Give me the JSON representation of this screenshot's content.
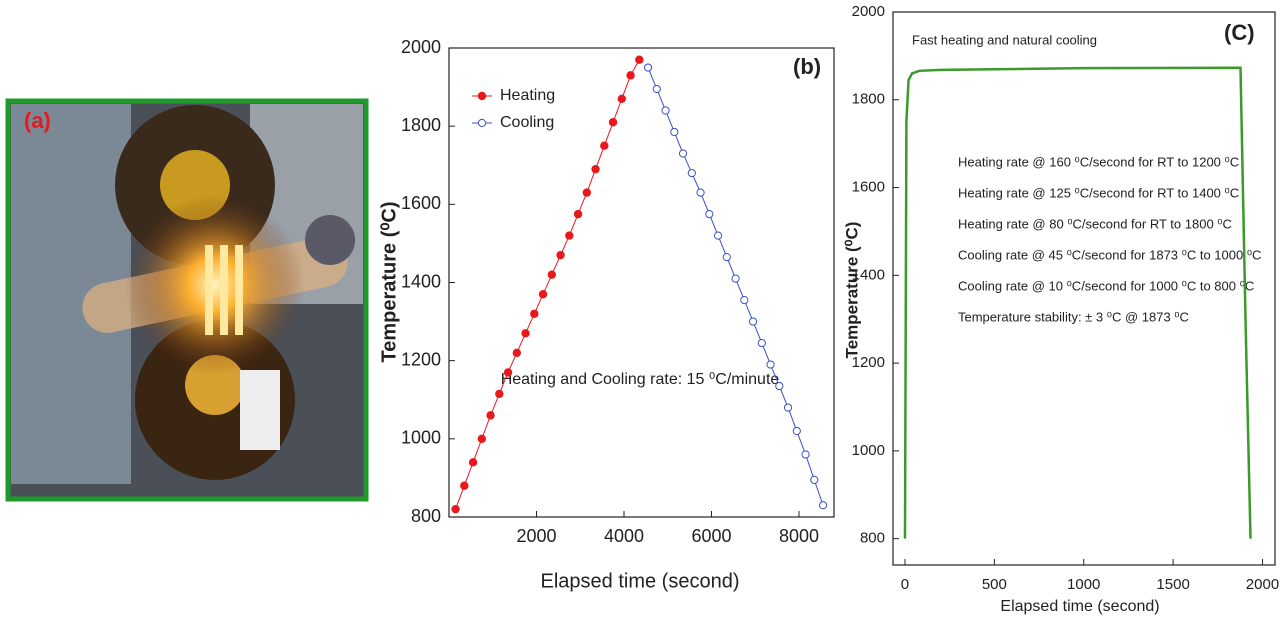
{
  "photo": {
    "label": "(a)"
  },
  "chart_data": [
    {
      "type": "line",
      "panel_label": "(b)",
      "x_label": "Elapsed time (second)",
      "y_label": "Temperature (⁰C)",
      "annotation": "Heating and Cooling rate: 15 ⁰C/minute",
      "xlim": [
        0,
        8800
      ],
      "xticks": [
        2000,
        4000,
        6000,
        8000
      ],
      "ylim": [
        800,
        2000
      ],
      "yticks": [
        800,
        1000,
        1200,
        1400,
        1600,
        1800,
        2000
      ],
      "grid": false,
      "legend": "upper left",
      "series": [
        {
          "name": "Heating",
          "color": "#e8191c",
          "marker": "filled",
          "x": [
            150,
            350,
            550,
            750,
            950,
            1150,
            1350,
            1550,
            1750,
            1950,
            2150,
            2350,
            2550,
            2750,
            2950,
            3150,
            3350,
            3550,
            3750,
            3950,
            4150,
            4350
          ],
          "values": [
            820,
            880,
            940,
            1000,
            1060,
            1115,
            1170,
            1220,
            1270,
            1320,
            1370,
            1420,
            1470,
            1520,
            1575,
            1630,
            1690,
            1750,
            1810,
            1870,
            1930,
            1970
          ]
        },
        {
          "name": "Cooling",
          "color": "#3a4fc8",
          "marker": "open",
          "x": [
            4550,
            4750,
            4950,
            5150,
            5350,
            5550,
            5750,
            5950,
            6150,
            6350,
            6550,
            6750,
            6950,
            7150,
            7350,
            7550,
            7750,
            7950,
            8150,
            8350,
            8550
          ],
          "values": [
            1950,
            1895,
            1840,
            1785,
            1730,
            1680,
            1630,
            1575,
            1520,
            1465,
            1410,
            1355,
            1300,
            1245,
            1190,
            1135,
            1080,
            1020,
            960,
            895,
            830
          ]
        }
      ]
    },
    {
      "type": "line",
      "panel_label": "(C)",
      "x_label": "Elapsed time (second)",
      "y_label": "Temperature (⁰C)",
      "subtitle": "Fast heating and natural cooling",
      "notes": [
        "Heating rate @ 160 ⁰C/second for RT to 1200 ⁰C",
        "Heating rate @ 125 ⁰C/second for RT to 1400 ⁰C",
        "Heating rate @ 80 ⁰C/second for RT to 1800 ⁰C",
        "Cooling rate @ 45 ⁰C/second for 1873 ⁰C to 1000 ⁰C",
        "Cooling rate @ 10 ⁰C/second for 1000 ⁰C to 800 ⁰C",
        "Temperature stability: ± 3 ⁰C @ 1873 ⁰C"
      ],
      "xlim": [
        -67,
        2070
      ],
      "xticks": [
        0,
        500,
        1000,
        1500,
        2000
      ],
      "ylim": [
        740,
        2000
      ],
      "yticks": [
        800,
        1000,
        1200,
        1400,
        1600,
        1800,
        2000
      ],
      "grid": false,
      "series": [
        {
          "color": "#3a9a2a",
          "marker": "none",
          "x": [
            0,
            8,
            20,
            40,
            80,
            200,
            1000,
            1877,
            1905,
            1933
          ],
          "values": [
            800,
            1750,
            1845,
            1860,
            1866,
            1868,
            1872,
            1873,
            1300,
            800
          ]
        }
      ]
    }
  ]
}
